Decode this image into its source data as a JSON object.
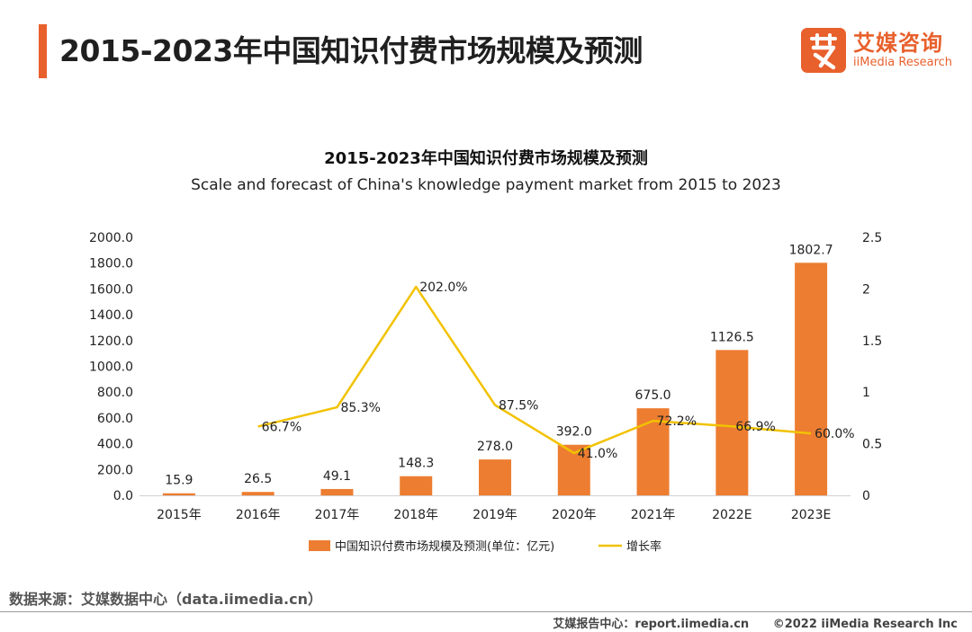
{
  "header": {
    "title": "2015-2023年中国知识付费市场规模及预测",
    "logo_cn": "艾媒咨询",
    "logo_en": "iiMedia Research"
  },
  "colors": {
    "accent": "#e8602c",
    "bar": "#ed7d31",
    "line": "#f2c200"
  },
  "chart_data": {
    "type": "bar",
    "title": "2015-2023年中国知识付费市场规模及预测",
    "subtitle": "Scale and forecast of China's knowledge payment market from 2015 to 2023",
    "categories": [
      "2015年",
      "2016年",
      "2017年",
      "2018年",
      "2019年",
      "2020年",
      "2021年",
      "2022E",
      "2023E"
    ],
    "series": [
      {
        "name": "中国知识付费市场规模及预测(单位：亿元)",
        "type": "bar",
        "axis": "left",
        "values": [
          15.9,
          26.5,
          49.1,
          148.3,
          278.0,
          392.0,
          675.0,
          1126.5,
          1802.7
        ],
        "labels": [
          "15.9",
          "26.5",
          "49.1",
          "148.3",
          "278.0",
          "392.0",
          "675.0",
          "1126.5",
          "1802.7"
        ]
      },
      {
        "name": "增长率",
        "type": "line",
        "axis": "right",
        "values": [
          null,
          0.667,
          0.853,
          2.02,
          0.875,
          0.41,
          0.722,
          0.669,
          0.6
        ],
        "labels": [
          "",
          "66.7%",
          "85.3%",
          "202.0%",
          "87.5%",
          "41.0%",
          "72.2%",
          "66.9%",
          "60.0%"
        ]
      }
    ],
    "y_left": {
      "min": 0,
      "max": 2000,
      "step": 200,
      "tick_labels": [
        "0.0",
        "200.0",
        "400.0",
        "600.0",
        "800.0",
        "1000.0",
        "1200.0",
        "1400.0",
        "1600.0",
        "1800.0",
        "2000.0"
      ]
    },
    "y_right": {
      "min": 0,
      "max": 2.5,
      "step": 0.5,
      "tick_labels": [
        "0",
        "0.5",
        "1",
        "1.5",
        "2",
        "2.5"
      ]
    },
    "grid": false,
    "legend_position": "bottom"
  },
  "footer": {
    "source": "数据来源：艾媒数据中心（data.iimedia.cn）",
    "report": "艾媒报告中心：report.iimedia.cn",
    "copyright": "©2022  iiMedia Research  Inc"
  }
}
